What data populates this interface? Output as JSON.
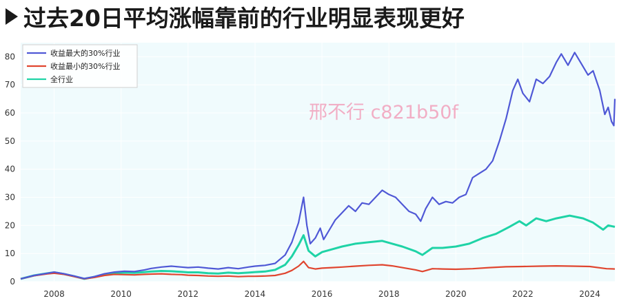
{
  "slide": {
    "title": "过去20日平均涨幅靠前的行业明显表现更好"
  },
  "watermark": "邢不行 c821b50f",
  "colors": {
    "plot_bg": "#f0fbfd",
    "top30": "#4f58d6",
    "bottom30": "#e0452f",
    "all": "#1fd3a6"
  },
  "chart_data": {
    "type": "line",
    "title": "",
    "xlabel": "",
    "ylabel": "",
    "xlim": [
      2007.0,
      2024.75
    ],
    "ylim": [
      0,
      85
    ],
    "x_ticks": [
      2008,
      2010,
      2012,
      2014,
      2016,
      2018,
      2020,
      2022,
      2024
    ],
    "y_ticks": [
      0,
      10,
      20,
      30,
      40,
      50,
      60,
      70,
      80
    ],
    "grid": true,
    "legend_position": "top-left",
    "series": [
      {
        "name": "收益最大的30%行业",
        "color": "#4f58d6",
        "points": [
          [
            2007.0,
            1.0
          ],
          [
            2007.4,
            2.2
          ],
          [
            2007.8,
            3.0
          ],
          [
            2008.0,
            3.4
          ],
          [
            2008.3,
            2.8
          ],
          [
            2008.6,
            2.0
          ],
          [
            2008.9,
            1.1
          ],
          [
            2009.2,
            1.8
          ],
          [
            2009.5,
            2.8
          ],
          [
            2009.8,
            3.4
          ],
          [
            2010.1,
            3.7
          ],
          [
            2010.4,
            3.6
          ],
          [
            2010.7,
            4.2
          ],
          [
            2010.9,
            4.7
          ],
          [
            2011.2,
            5.2
          ],
          [
            2011.5,
            5.5
          ],
          [
            2011.8,
            5.2
          ],
          [
            2012.0,
            5.0
          ],
          [
            2012.3,
            5.2
          ],
          [
            2012.6,
            4.8
          ],
          [
            2012.9,
            4.5
          ],
          [
            2013.2,
            5.0
          ],
          [
            2013.5,
            4.6
          ],
          [
            2013.8,
            5.2
          ],
          [
            2014.0,
            5.5
          ],
          [
            2014.3,
            5.8
          ],
          [
            2014.6,
            6.5
          ],
          [
            2014.9,
            9.5
          ],
          [
            2015.1,
            14.0
          ],
          [
            2015.3,
            21.0
          ],
          [
            2015.45,
            30.0
          ],
          [
            2015.55,
            20.0
          ],
          [
            2015.65,
            13.5
          ],
          [
            2015.8,
            15.5
          ],
          [
            2015.95,
            19.0
          ],
          [
            2016.05,
            15.0
          ],
          [
            2016.2,
            18.0
          ],
          [
            2016.4,
            22.0
          ],
          [
            2016.6,
            24.5
          ],
          [
            2016.8,
            27.0
          ],
          [
            2017.0,
            25.0
          ],
          [
            2017.2,
            28.0
          ],
          [
            2017.4,
            27.5
          ],
          [
            2017.6,
            30.0
          ],
          [
            2017.8,
            32.5
          ],
          [
            2018.0,
            31.0
          ],
          [
            2018.2,
            30.0
          ],
          [
            2018.4,
            27.5
          ],
          [
            2018.6,
            25.0
          ],
          [
            2018.8,
            24.0
          ],
          [
            2018.95,
            21.5
          ],
          [
            2019.1,
            26.0
          ],
          [
            2019.3,
            30.0
          ],
          [
            2019.5,
            27.5
          ],
          [
            2019.7,
            28.5
          ],
          [
            2019.9,
            28.0
          ],
          [
            2020.1,
            30.0
          ],
          [
            2020.3,
            31.0
          ],
          [
            2020.5,
            37.0
          ],
          [
            2020.7,
            38.5
          ],
          [
            2020.9,
            40.0
          ],
          [
            2021.1,
            43.0
          ],
          [
            2021.3,
            50.0
          ],
          [
            2021.5,
            58.0
          ],
          [
            2021.7,
            68.0
          ],
          [
            2021.85,
            72.0
          ],
          [
            2022.0,
            67.0
          ],
          [
            2022.2,
            64.0
          ],
          [
            2022.4,
            72.0
          ],
          [
            2022.6,
            70.5
          ],
          [
            2022.8,
            73.0
          ],
          [
            2023.0,
            78.0
          ],
          [
            2023.15,
            81.0
          ],
          [
            2023.35,
            77.0
          ],
          [
            2023.55,
            81.5
          ],
          [
            2023.75,
            77.5
          ],
          [
            2023.95,
            73.5
          ],
          [
            2024.1,
            75.0
          ],
          [
            2024.3,
            68.0
          ],
          [
            2024.45,
            59.5
          ],
          [
            2024.55,
            62.0
          ],
          [
            2024.65,
            57.0
          ],
          [
            2024.72,
            55.5
          ],
          [
            2024.75,
            65.0
          ]
        ]
      },
      {
        "name": "收益最小的30%行业",
        "color": "#e0452f",
        "points": [
          [
            2007.0,
            1.0
          ],
          [
            2007.4,
            2.1
          ],
          [
            2007.8,
            2.8
          ],
          [
            2008.0,
            3.0
          ],
          [
            2008.3,
            2.6
          ],
          [
            2008.6,
            1.8
          ],
          [
            2008.9,
            1.0
          ],
          [
            2009.2,
            1.5
          ],
          [
            2009.5,
            2.2
          ],
          [
            2009.8,
            2.6
          ],
          [
            2010.1,
            2.5
          ],
          [
            2010.4,
            2.4
          ],
          [
            2010.7,
            2.6
          ],
          [
            2010.9,
            2.7
          ],
          [
            2011.2,
            2.8
          ],
          [
            2011.5,
            2.6
          ],
          [
            2011.8,
            2.5
          ],
          [
            2012.0,
            2.3
          ],
          [
            2012.3,
            2.2
          ],
          [
            2012.6,
            2.0
          ],
          [
            2012.9,
            1.9
          ],
          [
            2013.2,
            2.0
          ],
          [
            2013.5,
            1.8
          ],
          [
            2013.8,
            1.9
          ],
          [
            2014.0,
            1.9
          ],
          [
            2014.3,
            2.0
          ],
          [
            2014.6,
            2.2
          ],
          [
            2014.9,
            3.0
          ],
          [
            2015.1,
            4.0
          ],
          [
            2015.3,
            5.5
          ],
          [
            2015.45,
            7.2
          ],
          [
            2015.6,
            5.0
          ],
          [
            2015.8,
            4.5
          ],
          [
            2016.0,
            4.8
          ],
          [
            2016.3,
            5.0
          ],
          [
            2016.6,
            5.2
          ],
          [
            2017.0,
            5.5
          ],
          [
            2017.4,
            5.8
          ],
          [
            2017.8,
            6.0
          ],
          [
            2018.1,
            5.6
          ],
          [
            2018.4,
            5.0
          ],
          [
            2018.8,
            4.2
          ],
          [
            2019.0,
            3.6
          ],
          [
            2019.3,
            4.6
          ],
          [
            2019.6,
            4.5
          ],
          [
            2020.0,
            4.4
          ],
          [
            2020.5,
            4.6
          ],
          [
            2021.0,
            5.0
          ],
          [
            2021.5,
            5.3
          ],
          [
            2022.0,
            5.4
          ],
          [
            2022.5,
            5.5
          ],
          [
            2023.0,
            5.6
          ],
          [
            2023.5,
            5.5
          ],
          [
            2024.0,
            5.4
          ],
          [
            2024.5,
            4.6
          ],
          [
            2024.75,
            4.5
          ]
        ]
      },
      {
        "name": "全行业",
        "color": "#1fd3a6",
        "points": [
          [
            2007.0,
            1.0
          ],
          [
            2007.4,
            2.2
          ],
          [
            2007.8,
            3.0
          ],
          [
            2008.0,
            3.3
          ],
          [
            2008.3,
            2.7
          ],
          [
            2008.6,
            1.9
          ],
          [
            2008.9,
            1.0
          ],
          [
            2009.2,
            1.7
          ],
          [
            2009.5,
            2.6
          ],
          [
            2009.8,
            3.0
          ],
          [
            2010.1,
            3.2
          ],
          [
            2010.4,
            3.1
          ],
          [
            2010.7,
            3.4
          ],
          [
            2010.9,
            3.6
          ],
          [
            2011.2,
            3.8
          ],
          [
            2011.5,
            3.7
          ],
          [
            2011.8,
            3.5
          ],
          [
            2012.0,
            3.3
          ],
          [
            2012.3,
            3.3
          ],
          [
            2012.6,
            3.0
          ],
          [
            2012.9,
            2.9
          ],
          [
            2013.2,
            3.2
          ],
          [
            2013.5,
            3.0
          ],
          [
            2013.8,
            3.2
          ],
          [
            2014.0,
            3.4
          ],
          [
            2014.3,
            3.6
          ],
          [
            2014.6,
            4.2
          ],
          [
            2014.9,
            6.0
          ],
          [
            2015.1,
            9.0
          ],
          [
            2015.3,
            13.0
          ],
          [
            2015.45,
            16.5
          ],
          [
            2015.6,
            11.0
          ],
          [
            2015.8,
            9.0
          ],
          [
            2016.0,
            10.5
          ],
          [
            2016.3,
            11.5
          ],
          [
            2016.6,
            12.5
          ],
          [
            2017.0,
            13.5
          ],
          [
            2017.4,
            14.0
          ],
          [
            2017.8,
            14.5
          ],
          [
            2018.1,
            13.5
          ],
          [
            2018.4,
            12.5
          ],
          [
            2018.8,
            10.8
          ],
          [
            2019.0,
            9.5
          ],
          [
            2019.3,
            12.0
          ],
          [
            2019.6,
            12.0
          ],
          [
            2020.0,
            12.5
          ],
          [
            2020.4,
            13.5
          ],
          [
            2020.8,
            15.5
          ],
          [
            2021.2,
            17.0
          ],
          [
            2021.6,
            19.5
          ],
          [
            2021.9,
            21.5
          ],
          [
            2022.1,
            20.0
          ],
          [
            2022.4,
            22.5
          ],
          [
            2022.7,
            21.5
          ],
          [
            2023.0,
            22.5
          ],
          [
            2023.4,
            23.5
          ],
          [
            2023.8,
            22.5
          ],
          [
            2024.1,
            21.0
          ],
          [
            2024.4,
            18.5
          ],
          [
            2024.55,
            20.0
          ],
          [
            2024.75,
            19.5
          ]
        ]
      }
    ]
  }
}
